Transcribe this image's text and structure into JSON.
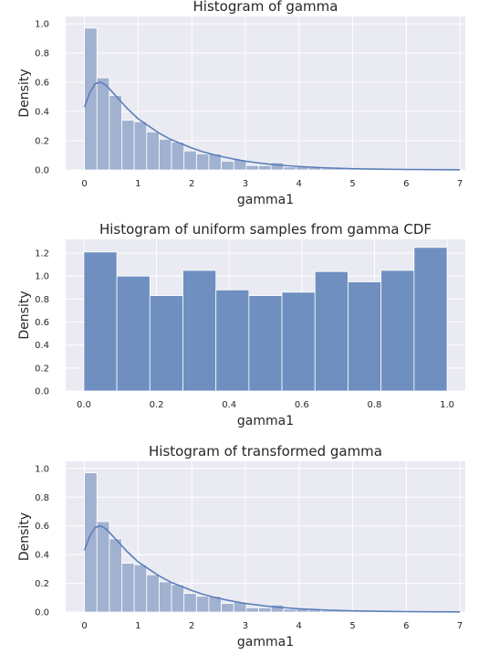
{
  "colors": {
    "axes_background": "#eaeaf2",
    "grid": "#ffffff",
    "hist_fill_light": "#a1b1d0",
    "hist_fill_solid": "#6f8fc0",
    "kde_line": "#5b7fba",
    "text": "#262626"
  },
  "chart_data": [
    {
      "type": "bar",
      "subtype": "histogram_with_kde",
      "title": "Histogram of gamma",
      "xlabel": "gamma1",
      "ylabel": "Density",
      "xlim": [
        -0.35,
        7.1
      ],
      "ylim": [
        0,
        1.05
      ],
      "xticks": [
        0,
        1,
        2,
        3,
        4,
        5,
        6,
        7
      ],
      "yticks": [
        0.0,
        0.2,
        0.4,
        0.6,
        0.8,
        1.0
      ],
      "xtick_labels": [
        "0",
        "1",
        "2",
        "3",
        "4",
        "5",
        "6",
        "7"
      ],
      "ytick_labels": [
        "0.0",
        "0.2",
        "0.4",
        "0.6",
        "0.8",
        "1.0"
      ],
      "grid": true,
      "bin_width": 0.232,
      "bins_start": 0.0,
      "values": [
        0.97,
        0.63,
        0.51,
        0.34,
        0.33,
        0.26,
        0.21,
        0.19,
        0.13,
        0.11,
        0.11,
        0.06,
        0.07,
        0.03,
        0.03,
        0.05,
        0.02,
        0.02,
        0.015,
        0.01,
        0.01,
        0.008,
        0.006,
        0.005,
        0.004,
        0.003,
        0.003,
        0.002,
        0.002,
        0.001
      ],
      "kde": {
        "x": [
          0.0,
          0.1,
          0.2,
          0.3,
          0.4,
          0.5,
          0.6,
          0.8,
          1.0,
          1.2,
          1.4,
          1.6,
          1.8,
          2.0,
          2.2,
          2.4,
          2.6,
          2.8,
          3.0,
          3.2,
          3.4,
          3.6,
          3.8,
          4.0,
          4.5,
          5.0,
          5.5,
          6.0,
          6.5,
          7.0
        ],
        "y": [
          0.43,
          0.53,
          0.59,
          0.6,
          0.58,
          0.54,
          0.5,
          0.42,
          0.35,
          0.3,
          0.25,
          0.21,
          0.18,
          0.15,
          0.125,
          0.105,
          0.088,
          0.073,
          0.06,
          0.05,
          0.041,
          0.034,
          0.028,
          0.023,
          0.014,
          0.008,
          0.005,
          0.003,
          0.002,
          0.001
        ]
      }
    },
    {
      "type": "bar",
      "subtype": "histogram",
      "title": "Histogram of uniform samples from gamma CDF",
      "xlabel": "gamma1",
      "ylabel": "Density",
      "xlim": [
        -0.05,
        1.05
      ],
      "ylim": [
        0,
        1.32
      ],
      "xticks": [
        0.0,
        0.2,
        0.4,
        0.6,
        0.8,
        1.0
      ],
      "yticks": [
        0.0,
        0.2,
        0.4,
        0.6,
        0.8,
        1.0,
        1.2
      ],
      "xtick_labels": [
        "0.0",
        "0.2",
        "0.4",
        "0.6",
        "0.8",
        "1.0"
      ],
      "ytick_labels": [
        "0.0",
        "0.2",
        "0.4",
        "0.6",
        "0.8",
        "1.0",
        "1.2"
      ],
      "grid": true,
      "bin_width": 0.0909,
      "bins_start": 0.0,
      "values": [
        1.21,
        1.0,
        0.83,
        1.05,
        0.88,
        0.83,
        0.86,
        1.04,
        0.95,
        1.05,
        1.25
      ]
    },
    {
      "type": "bar",
      "subtype": "histogram_with_kde",
      "title": "Histogram of transformed gamma",
      "xlabel": "gamma1",
      "ylabel": "Density",
      "xlim": [
        -0.35,
        7.1
      ],
      "ylim": [
        0,
        1.05
      ],
      "xticks": [
        0,
        1,
        2,
        3,
        4,
        5,
        6,
        7
      ],
      "yticks": [
        0.0,
        0.2,
        0.4,
        0.6,
        0.8,
        1.0
      ],
      "xtick_labels": [
        "0",
        "1",
        "2",
        "3",
        "4",
        "5",
        "6",
        "7"
      ],
      "ytick_labels": [
        "0.0",
        "0.2",
        "0.4",
        "0.6",
        "0.8",
        "1.0"
      ],
      "grid": true,
      "bin_width": 0.232,
      "bins_start": 0.0,
      "values": [
        0.97,
        0.63,
        0.51,
        0.34,
        0.33,
        0.26,
        0.21,
        0.19,
        0.13,
        0.11,
        0.11,
        0.06,
        0.07,
        0.03,
        0.03,
        0.05,
        0.02,
        0.02,
        0.015,
        0.01,
        0.01,
        0.008,
        0.006,
        0.005,
        0.004,
        0.003,
        0.003,
        0.002,
        0.002,
        0.001
      ],
      "kde": {
        "x": [
          0.0,
          0.1,
          0.2,
          0.3,
          0.4,
          0.5,
          0.6,
          0.8,
          1.0,
          1.2,
          1.4,
          1.6,
          1.8,
          2.0,
          2.2,
          2.4,
          2.6,
          2.8,
          3.0,
          3.2,
          3.4,
          3.6,
          3.8,
          4.0,
          4.5,
          5.0,
          5.5,
          6.0,
          6.5,
          7.0
        ],
        "y": [
          0.43,
          0.53,
          0.59,
          0.6,
          0.58,
          0.54,
          0.5,
          0.42,
          0.35,
          0.3,
          0.25,
          0.21,
          0.18,
          0.15,
          0.125,
          0.105,
          0.088,
          0.073,
          0.06,
          0.05,
          0.041,
          0.034,
          0.028,
          0.023,
          0.014,
          0.008,
          0.005,
          0.003,
          0.002,
          0.001
        ]
      }
    }
  ]
}
